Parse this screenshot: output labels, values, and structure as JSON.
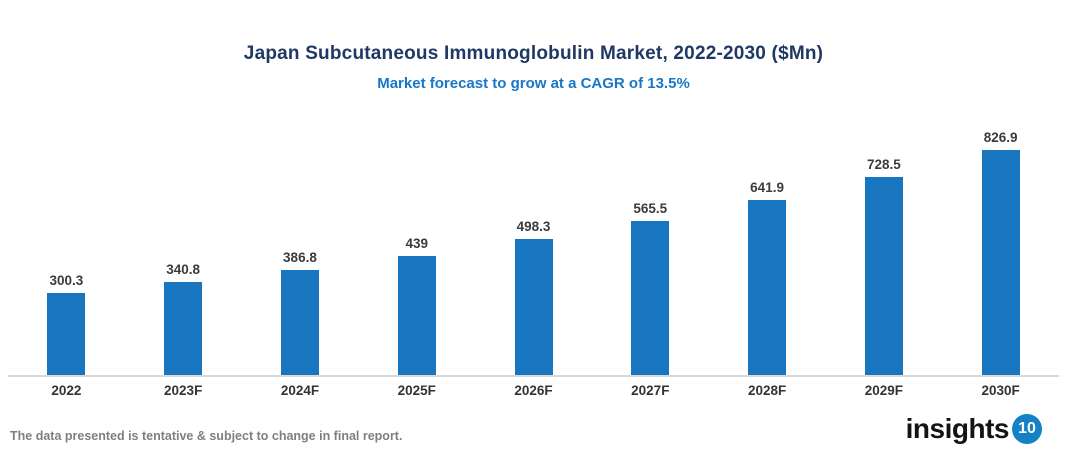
{
  "header": {
    "title": "Japan Subcutaneous Immunoglobulin Market, 2022-2030 ($Mn)",
    "subtitle": "Market forecast to grow at a CAGR of 13.5%"
  },
  "chart_data": {
    "type": "bar",
    "title": "Japan Subcutaneous Immunoglobulin Market, 2022-2030 ($Mn)",
    "subtitle": "Market forecast to grow at a CAGR of 13.5%",
    "categories": [
      "2022",
      "2023F",
      "2024F",
      "2025F",
      "2026F",
      "2027F",
      "2028F",
      "2029F",
      "2030F"
    ],
    "values": [
      300.3,
      340.8,
      386.8,
      439,
      498.3,
      565.5,
      641.9,
      728.5,
      826.9
    ],
    "xlabel": "",
    "ylabel": "",
    "ylim": [
      0,
      900
    ],
    "grid": false,
    "legend_position": "none",
    "data_labels": true,
    "bar_color": "#1776bf",
    "axis_line_color": "#d9d9d9"
  },
  "footer": {
    "note": "The data presented is tentative & subject to change in final report.",
    "logo_text": "insights",
    "logo_badge": "10"
  },
  "colors": {
    "title": "#1f3864",
    "subtitle": "#1777c8",
    "bar": "#1776bf",
    "value_label": "#3b3b3b",
    "axis_label": "#333333",
    "footer_note": "#7f7f7f",
    "logo_badge_bg": "#1581c5"
  }
}
